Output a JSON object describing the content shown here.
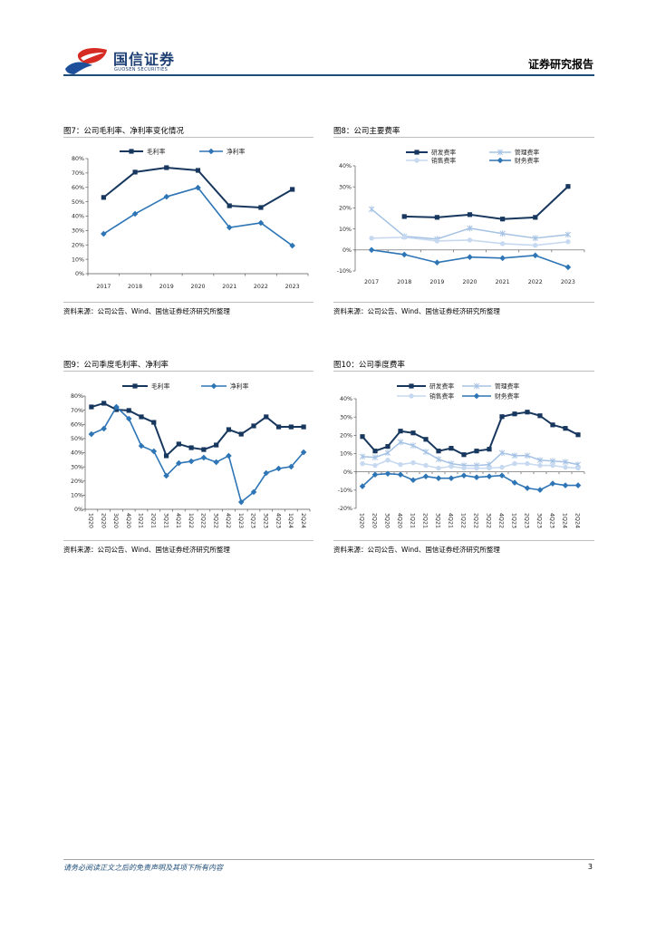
{
  "header": {
    "brand_cn": "国信证券",
    "brand_en": "GUOSEN SECURITIES",
    "report_type": "证券研究报告"
  },
  "colors": {
    "brand_red": "#d62b22",
    "brand_blue": "#1d4f9a",
    "header_rule": "#1f4e79"
  },
  "chart_data": [
    {
      "title": "图7：公司毛利率、净利率变化情况",
      "type": "line",
      "categories": [
        "2017",
        "2018",
        "2019",
        "2020",
        "2021",
        "2022",
        "2023"
      ],
      "y_ticks": [
        "0%",
        "10%",
        "20%",
        "30%",
        "40%",
        "50%",
        "60%",
        "70%",
        "80%"
      ],
      "ylim": [
        0,
        80
      ],
      "grid": false,
      "legend": "top",
      "series": [
        {
          "name": "毛利率",
          "color": "#17375e",
          "marker": "square",
          "values": [
            53.0,
            70.6,
            73.7,
            71.8,
            47.2,
            46.0,
            58.6
          ]
        },
        {
          "name": "净利率",
          "color": "#2e75b6",
          "marker": "diamond",
          "values": [
            27.7,
            41.6,
            53.5,
            59.8,
            32.1,
            35.3,
            19.5
          ]
        }
      ]
    },
    {
      "title": "图8：公司主要费率",
      "type": "line",
      "categories": [
        "2017",
        "2018",
        "2019",
        "2020",
        "2021",
        "2022",
        "2023"
      ],
      "y_ticks": [
        "-10%",
        "0%",
        "10%",
        "20%",
        "30%",
        "40%"
      ],
      "ylim": [
        -10,
        40
      ],
      "grid": false,
      "legend": "top",
      "series": [
        {
          "name": "研发费率",
          "color": "#17375e",
          "marker": "square",
          "values": [
            null,
            15.9,
            15.5,
            16.8,
            14.7,
            15.5,
            30.2
          ]
        },
        {
          "name": "管理费率",
          "color": "#a5c2e4",
          "marker": "asterisk",
          "values": [
            19.4,
            6.5,
            5.2,
            10.3,
            7.8,
            5.6,
            7.3
          ]
        },
        {
          "name": "销售费率",
          "color": "#c6d9f0",
          "marker": "circle",
          "values": [
            5.6,
            6.0,
            4.3,
            4.7,
            3.0,
            2.2,
            3.9
          ]
        },
        {
          "name": "财务费率",
          "color": "#2e75b6",
          "marker": "diamond",
          "values": [
            0.0,
            -2.2,
            -6.0,
            -3.4,
            -3.9,
            -2.6,
            -8.2
          ]
        }
      ]
    },
    {
      "title": "图9：公司季度毛利率、净利率",
      "type": "line",
      "categories": [
        "1Q20",
        "2Q20",
        "3Q20",
        "4Q20",
        "1Q21",
        "2Q21",
        "3Q21",
        "4Q21",
        "1Q22",
        "2Q22",
        "3Q22",
        "4Q22",
        "1Q23",
        "2Q23",
        "3Q23",
        "4Q23",
        "1Q24",
        "2Q24"
      ],
      "y_ticks": [
        "0%",
        "10%",
        "20%",
        "30%",
        "40%",
        "50%",
        "60%",
        "70%",
        "80%"
      ],
      "ylim": [
        0,
        80
      ],
      "grid": false,
      "legend": "top",
      "series": [
        {
          "name": "毛利率",
          "color": "#17375e",
          "marker": "square",
          "values": [
            72.3,
            74.9,
            70.4,
            69.8,
            65.3,
            61.4,
            37.8,
            46.1,
            43.5,
            42.2,
            45.4,
            56.3,
            53.1,
            58.9,
            65.3,
            58.2,
            58.2,
            58.2
          ]
        },
        {
          "name": "净利率",
          "color": "#2e75b6",
          "marker": "diamond",
          "values": [
            53.1,
            57.0,
            72.3,
            64.0,
            44.8,
            41.0,
            23.7,
            32.6,
            33.9,
            36.5,
            33.3,
            37.8,
            5.1,
            12.2,
            25.6,
            28.8,
            30.1,
            40.3
          ]
        }
      ]
    },
    {
      "title": "图10：公司季度费率",
      "type": "line",
      "categories": [
        "1Q20",
        "2Q20",
        "3Q20",
        "4Q20",
        "1Q21",
        "2Q21",
        "3Q21",
        "4Q21",
        "1Q22",
        "2Q22",
        "3Q22",
        "4Q22",
        "1Q23",
        "2Q23",
        "3Q23",
        "4Q23",
        "1Q24",
        "2Q24"
      ],
      "y_ticks": [
        "-20%",
        "-10%",
        "0%",
        "10%",
        "20%",
        "30%",
        "40%"
      ],
      "ylim": [
        -20,
        40
      ],
      "grid": false,
      "legend": "top",
      "series": [
        {
          "name": "研发费率",
          "color": "#17375e",
          "marker": "square",
          "values": [
            19.3,
            11.4,
            13.9,
            22.3,
            21.3,
            17.8,
            11.4,
            12.9,
            9.4,
            11.4,
            12.4,
            30.2,
            31.7,
            32.7,
            30.7,
            25.7,
            23.8,
            20.3
          ]
        },
        {
          "name": "管理费率",
          "color": "#a5c2e4",
          "marker": "asterisk",
          "values": [
            8.4,
            7.9,
            10.4,
            16.3,
            14.4,
            10.9,
            6.9,
            4.5,
            3.5,
            3.5,
            4.0,
            10.4,
            8.9,
            8.9,
            6.4,
            5.9,
            5.4,
            4.0
          ]
        },
        {
          "name": "销售费率",
          "color": "#c6d9f0",
          "marker": "circle",
          "values": [
            4.5,
            3.5,
            6.4,
            4.0,
            5.0,
            3.5,
            2.0,
            3.0,
            2.0,
            2.0,
            2.0,
            2.5,
            4.5,
            4.5,
            3.5,
            3.5,
            2.5,
            2.0
          ]
        },
        {
          "name": "财务费率",
          "color": "#2e75b6",
          "marker": "diamond",
          "values": [
            -7.9,
            -1.5,
            -1.0,
            -1.5,
            -4.5,
            -2.5,
            -3.5,
            -3.5,
            -2.0,
            -3.0,
            -2.5,
            -2.0,
            -5.9,
            -8.9,
            -9.9,
            -6.4,
            -7.4,
            -7.4
          ]
        }
      ]
    }
  ],
  "sources": [
    "资料来源：公司公告、Wind、国信证券经济研究所整理",
    "资料来源：公司公告、Wind、国信证券经济研究所整理",
    "资料来源：公司公告、Wind、国信证券经济研究所整理",
    "资料来源：公司公告、Wind、国信证券经济研究所整理"
  ],
  "footer": {
    "disclaimer": "请务必阅读正文之后的免责声明及其项下所有内容",
    "page": "3"
  }
}
